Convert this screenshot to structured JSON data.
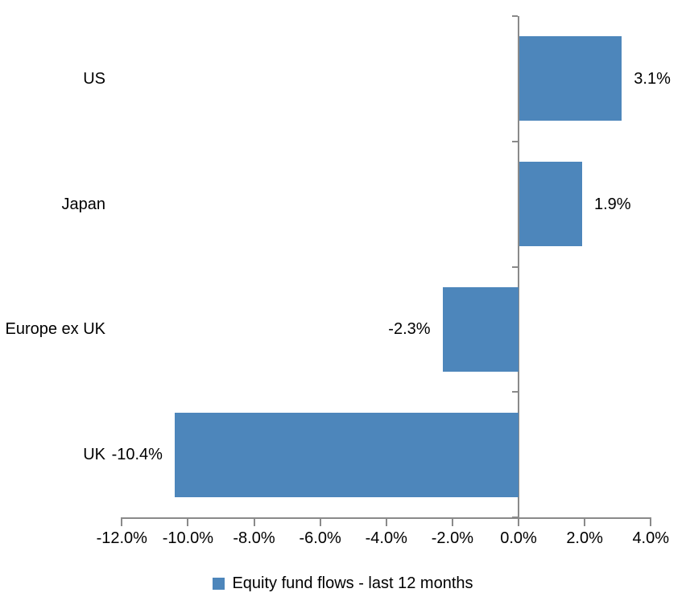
{
  "chart_data": {
    "type": "bar",
    "orientation": "horizontal",
    "title": "",
    "categories": [
      "US",
      "Japan",
      "Europe ex UK",
      "UK"
    ],
    "series": [
      {
        "name": "Equity fund flows - last 12 months",
        "values": [
          3.1,
          1.9,
          -2.3,
          -10.4
        ],
        "data_labels": [
          "3.1%",
          "1.9%",
          "-2.3%",
          "-10.4%"
        ]
      }
    ],
    "xlabel": "",
    "ylabel": "",
    "xlim": [
      -12,
      4
    ],
    "x_ticks": [
      -12,
      -10,
      -8,
      -6,
      -4,
      -2,
      0,
      2,
      4
    ],
    "x_tick_labels": [
      "-12.0%",
      "-10.0%",
      "-8.0%",
      "-6.0%",
      "-4.0%",
      "-2.0%",
      "0.0%",
      "2.0%",
      "4.0%"
    ],
    "grid": false,
    "legend_position": "bottom",
    "colors": {
      "bar": "#4d86bb",
      "axis": "#8a8a8a",
      "text": "#000000"
    }
  },
  "legend": {
    "label": "Equity fund flows - last 12 months"
  }
}
